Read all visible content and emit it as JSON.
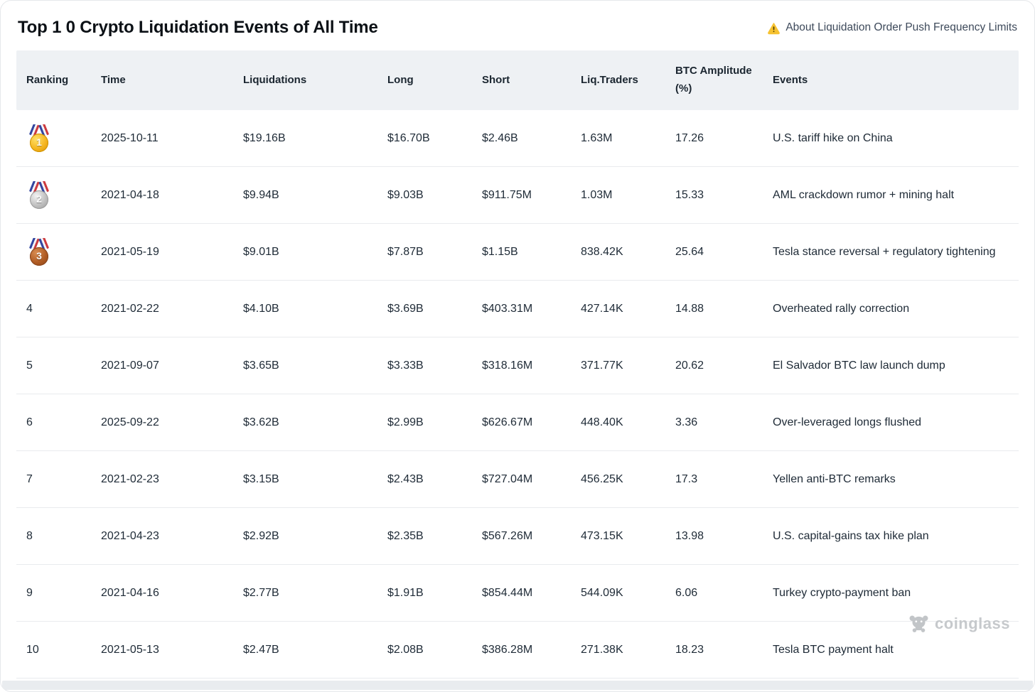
{
  "page": {
    "title": "Top 1 0 Crypto Liquidation Events of All Time"
  },
  "notice": {
    "icon": "warning-icon",
    "label": "About Liquidation Order Push Frequency Limits"
  },
  "table": {
    "columns": [
      {
        "key": "ranking",
        "label": "Ranking"
      },
      {
        "key": "time",
        "label": "Time"
      },
      {
        "key": "liquidations",
        "label": "Liquidations"
      },
      {
        "key": "long",
        "label": "Long"
      },
      {
        "key": "short",
        "label": "Short"
      },
      {
        "key": "liq_traders",
        "label": "Liq.Traders"
      },
      {
        "key": "btc_amplitude",
        "label": "BTC Amplitude (%)"
      },
      {
        "key": "events",
        "label": "Events"
      }
    ],
    "rows": [
      {
        "ranking": "1",
        "medal": "gold",
        "time": "2025-10-11",
        "liquidations": "$19.16B",
        "long": "$16.70B",
        "short": "$2.46B",
        "liq_traders": "1.63M",
        "btc_amplitude": "17.26",
        "events": "U.S. tariff hike on China"
      },
      {
        "ranking": "2",
        "medal": "silver",
        "time": "2021-04-18",
        "liquidations": "$9.94B",
        "long": "$9.03B",
        "short": "$911.75M",
        "liq_traders": "1.03M",
        "btc_amplitude": "15.33",
        "events": "AML crackdown rumor + mining halt"
      },
      {
        "ranking": "3",
        "medal": "bronze",
        "time": "2021-05-19",
        "liquidations": "$9.01B",
        "long": "$7.87B",
        "short": "$1.15B",
        "liq_traders": "838.42K",
        "btc_amplitude": "25.64",
        "events": "Tesla stance reversal + regulatory tightening"
      },
      {
        "ranking": "4",
        "time": "2021-02-22",
        "liquidations": "$4.10B",
        "long": "$3.69B",
        "short": "$403.31M",
        "liq_traders": "427.14K",
        "btc_amplitude": "14.88",
        "events": "Overheated rally correction"
      },
      {
        "ranking": "5",
        "time": "2021-09-07",
        "liquidations": "$3.65B",
        "long": "$3.33B",
        "short": "$318.16M",
        "liq_traders": "371.77K",
        "btc_amplitude": "20.62",
        "events": "El Salvador BTC law launch dump"
      },
      {
        "ranking": "6",
        "time": "2025-09-22",
        "liquidations": "$3.62B",
        "long": "$2.99B",
        "short": "$626.67M",
        "liq_traders": "448.40K",
        "btc_amplitude": "3.36",
        "events": "Over-leveraged longs flushed"
      },
      {
        "ranking": "7",
        "time": "2021-02-23",
        "liquidations": "$3.15B",
        "long": "$2.43B",
        "short": "$727.04M",
        "liq_traders": "456.25K",
        "btc_amplitude": "17.3",
        "events": "Yellen anti-BTC remarks"
      },
      {
        "ranking": "8",
        "time": "2021-04-23",
        "liquidations": "$2.92B",
        "long": "$2.35B",
        "short": "$567.26M",
        "liq_traders": "473.15K",
        "btc_amplitude": "13.98",
        "events": "U.S. capital-gains tax hike plan"
      },
      {
        "ranking": "9",
        "time": "2021-04-16",
        "liquidations": "$2.77B",
        "long": "$1.91B",
        "short": "$854.44M",
        "liq_traders": "544.09K",
        "btc_amplitude": "6.06",
        "events": "Turkey crypto-payment ban"
      },
      {
        "ranking": "10",
        "time": "2021-05-13",
        "liquidations": "$2.47B",
        "long": "$2.08B",
        "short": "$386.28M",
        "liq_traders": "271.38K",
        "btc_amplitude": "18.23",
        "events": "Tesla BTC payment halt"
      }
    ]
  },
  "watermark": {
    "icon": "coinglass-bull-icon",
    "brand": "coinglass"
  },
  "colors": {
    "header_bg": "#eef1f4",
    "row_divider": "#e9ebee",
    "text": "#1e2a36",
    "notice_text": "#3e4a5b",
    "warning_yellow": "#f6c231",
    "medal_gold": "#f5b51f",
    "medal_silver": "#bfbfbf",
    "medal_bronze": "#af5b23",
    "watermark_gray": "#c6c9cc"
  }
}
